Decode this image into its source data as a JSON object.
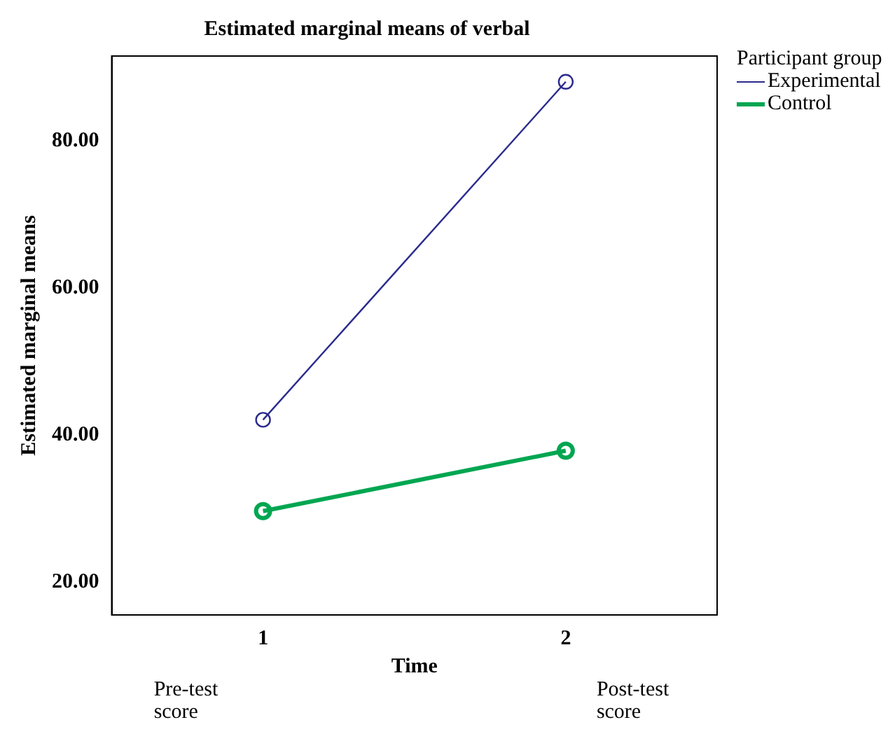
{
  "chart_data": {
    "type": "line",
    "title": "Estimated marginal means of verbal",
    "xlabel": "Time",
    "ylabel": "Estimated marginal means",
    "legend_title": "Participant group",
    "categories": [
      "1",
      "2"
    ],
    "series": [
      {
        "name": "Experimental",
        "color": "#2b2b8f",
        "values": [
          42.1,
          88.0
        ]
      },
      {
        "name": "Control",
        "color": "#00a651",
        "values": [
          29.7,
          37.9
        ]
      }
    ],
    "ylim": [
      15.6,
      91.5
    ],
    "yticks": [
      {
        "value": 20,
        "label": "20.00"
      },
      {
        "value": 40,
        "label": "40.00"
      },
      {
        "value": 60,
        "label": "60.00"
      },
      {
        "value": 80,
        "label": "80.00"
      }
    ],
    "grid": false,
    "legend": "right",
    "marker": "circle",
    "line_style": "solid",
    "annotations": [
      "Pre-test score",
      "Post-test score"
    ]
  }
}
